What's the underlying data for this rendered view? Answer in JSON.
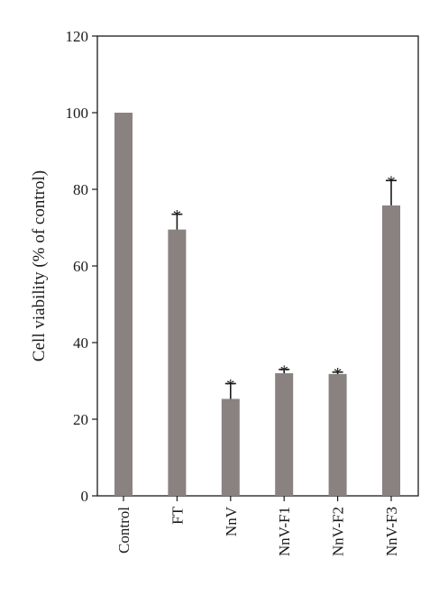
{
  "chart_data": {
    "type": "bar",
    "title": "",
    "xlabel": "",
    "ylabel": "Cell viability (% of control)",
    "ylim": [
      0,
      120
    ],
    "yticks": [
      "0",
      "20",
      "40",
      "60",
      "80",
      "100",
      "120"
    ],
    "categories": [
      "Control",
      "FT",
      "NnV",
      "NnV-F1",
      "NnV-F2",
      "NnV-F3"
    ],
    "values": [
      100,
      69.5,
      25.3,
      32,
      31.8,
      75.8
    ],
    "errors": [
      0,
      4,
      4,
      1,
      0.5,
      6.5
    ],
    "significance": [
      "",
      "*",
      "*",
      "*",
      "*",
      "*"
    ],
    "bar_color": "#898280",
    "error_color": "#1a1a1a",
    "grid": false
  }
}
